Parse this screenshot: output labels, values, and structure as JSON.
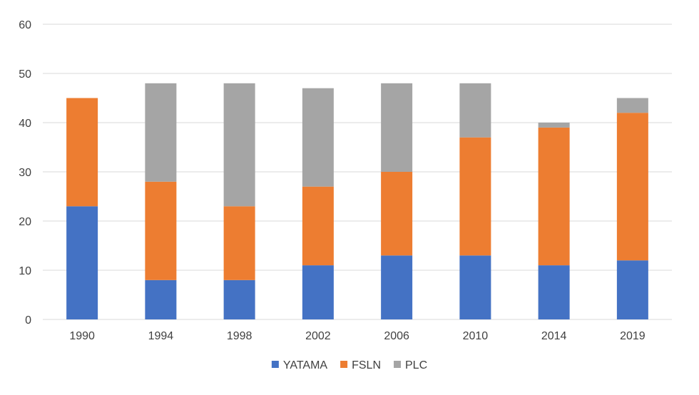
{
  "chart_data": {
    "type": "bar",
    "stacked": true,
    "title": "",
    "xlabel": "",
    "ylabel": "",
    "categories": [
      "1990",
      "1994",
      "1998",
      "2002",
      "2006",
      "2010",
      "2014",
      "2019"
    ],
    "series": [
      {
        "name": "YATAMA",
        "color": "#4472C4",
        "values": [
          23,
          8,
          8,
          11,
          13,
          13,
          11,
          12
        ]
      },
      {
        "name": "FSLN",
        "color": "#ED7D31",
        "values": [
          22,
          20,
          15,
          16,
          17,
          24,
          28,
          30
        ]
      },
      {
        "name": "PLC",
        "color": "#A5A5A5",
        "values": [
          0,
          20,
          25,
          20,
          18,
          11,
          1,
          3
        ]
      }
    ],
    "ylim": [
      0,
      60
    ],
    "yticks": [
      0,
      10,
      20,
      30,
      40,
      50,
      60
    ],
    "grid": true,
    "legend_position": "bottom-center"
  }
}
